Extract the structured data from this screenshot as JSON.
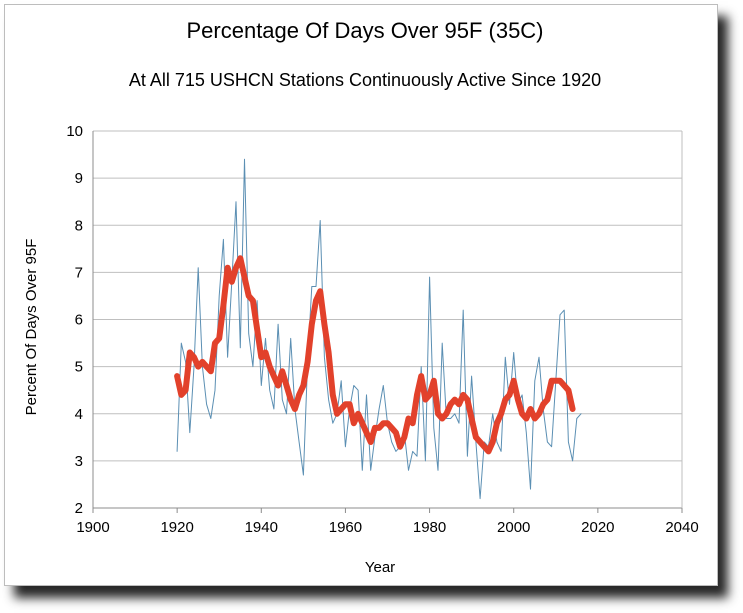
{
  "chart_data": {
    "type": "line",
    "title": "Percentage Of Days Over 95F (35C)",
    "subtitle": "At All 715 USHCN Stations Continuously Active Since 1920",
    "xlabel": "Year",
    "ylabel": "Percent Of Days Over 95F",
    "xlim": [
      1900,
      2040
    ],
    "ylim": [
      2,
      10
    ],
    "xticks": [
      1900,
      1920,
      1940,
      1960,
      1980,
      2000,
      2020,
      2040
    ],
    "yticks": [
      2,
      3,
      4,
      5,
      6,
      7,
      8,
      9,
      10
    ],
    "grid": "horizontal",
    "legend": "none",
    "series": [
      {
        "color": "#5b8fb3",
        "x": [
          1920,
          1921,
          1922,
          1923,
          1924,
          1925,
          1926,
          1927,
          1928,
          1929,
          1930,
          1931,
          1932,
          1933,
          1934,
          1935,
          1936,
          1937,
          1938,
          1939,
          1940,
          1941,
          1942,
          1943,
          1944,
          1945,
          1946,
          1947,
          1948,
          1949,
          1950,
          1951,
          1952,
          1953,
          1954,
          1955,
          1956,
          1957,
          1958,
          1959,
          1960,
          1961,
          1962,
          1963,
          1964,
          1965,
          1966,
          1967,
          1968,
          1969,
          1970,
          1971,
          1972,
          1973,
          1974,
          1975,
          1976,
          1977,
          1978,
          1979,
          1980,
          1981,
          1982,
          1983,
          1984,
          1985,
          1986,
          1987,
          1988,
          1989,
          1990,
          1991,
          1992,
          1993,
          1994,
          1995,
          1996,
          1997,
          1998,
          1999,
          2000,
          2001,
          2002,
          2003,
          2004,
          2005,
          2006,
          2007,
          2008,
          2009,
          2010,
          2011,
          2012,
          2013,
          2014,
          2015,
          2016
        ],
        "values": [
          3.2,
          5.5,
          5.1,
          3.6,
          5.0,
          7.1,
          5.0,
          4.2,
          3.9,
          4.5,
          6.5,
          7.7,
          5.2,
          6.8,
          8.5,
          5.4,
          9.4,
          5.7,
          5.0,
          6.4,
          4.6,
          5.6,
          4.5,
          4.1,
          5.9,
          4.3,
          4.0,
          5.6,
          4.1,
          3.4,
          2.7,
          5.1,
          6.7,
          6.7,
          8.1,
          5.2,
          4.3,
          3.8,
          4.0,
          4.7,
          3.3,
          4.1,
          4.6,
          4.5,
          2.8,
          4.4,
          2.8,
          3.5,
          4.1,
          4.6,
          3.8,
          3.4,
          3.2,
          3.3,
          3.6,
          2.8,
          3.2,
          3.1,
          5.0,
          3.0,
          6.9,
          3.7,
          2.8,
          5.5,
          3.9,
          3.9,
          4.0,
          3.8,
          6.2,
          3.1,
          4.8,
          3.4,
          2.2,
          3.4,
          3.3,
          4.0,
          3.4,
          3.2,
          5.2,
          4.2,
          5.3,
          4.2,
          4.4,
          3.6,
          2.4,
          4.7,
          5.2,
          4.1,
          3.4,
          3.3,
          4.7,
          6.1,
          6.2,
          3.4,
          3.0,
          3.9,
          4.0
        ]
      },
      {
        "color": "#e2412b",
        "x": [
          1920,
          1921,
          1922,
          1923,
          1924,
          1925,
          1926,
          1927,
          1928,
          1929,
          1930,
          1931,
          1932,
          1933,
          1934,
          1935,
          1936,
          1937,
          1938,
          1939,
          1940,
          1941,
          1942,
          1943,
          1944,
          1945,
          1946,
          1947,
          1948,
          1949,
          1950,
          1951,
          1952,
          1953,
          1954,
          1955,
          1956,
          1957,
          1958,
          1959,
          1960,
          1961,
          1962,
          1963,
          1964,
          1965,
          1966,
          1967,
          1968,
          1969,
          1970,
          1971,
          1972,
          1973,
          1974,
          1975,
          1976,
          1977,
          1978,
          1979,
          1980,
          1981,
          1982,
          1983,
          1984,
          1985,
          1986,
          1987,
          1988,
          1989,
          1990,
          1991,
          1992,
          1993,
          1994,
          1995,
          1996,
          1997,
          1998,
          1999,
          2000,
          2001,
          2002,
          2003,
          2004,
          2005,
          2006,
          2007,
          2008,
          2009,
          2010,
          2011,
          2012,
          2013,
          2014
        ],
        "values": [
          4.8,
          4.4,
          4.5,
          5.3,
          5.2,
          5.0,
          5.1,
          5.0,
          4.9,
          5.5,
          5.6,
          6.3,
          7.1,
          6.8,
          7.1,
          7.3,
          6.9,
          6.5,
          6.4,
          5.8,
          5.2,
          5.3,
          5.0,
          4.8,
          4.6,
          4.9,
          4.6,
          4.3,
          4.1,
          4.4,
          4.6,
          5.1,
          5.9,
          6.4,
          6.6,
          5.9,
          5.3,
          4.4,
          4.0,
          4.1,
          4.2,
          4.2,
          3.8,
          4.0,
          3.8,
          3.6,
          3.4,
          3.7,
          3.7,
          3.8,
          3.8,
          3.7,
          3.6,
          3.3,
          3.5,
          3.9,
          3.8,
          4.4,
          4.8,
          4.3,
          4.4,
          4.7,
          4.0,
          3.9,
          4.0,
          4.2,
          4.3,
          4.2,
          4.4,
          4.3,
          3.9,
          3.5,
          3.4,
          3.3,
          3.2,
          3.4,
          3.8,
          4.0,
          4.3,
          4.4,
          4.7,
          4.3,
          4.0,
          3.9,
          4.1,
          3.9,
          4.0,
          4.2,
          4.3,
          4.7,
          4.7,
          4.7,
          4.6,
          4.5,
          4.1
        ]
      }
    ]
  }
}
